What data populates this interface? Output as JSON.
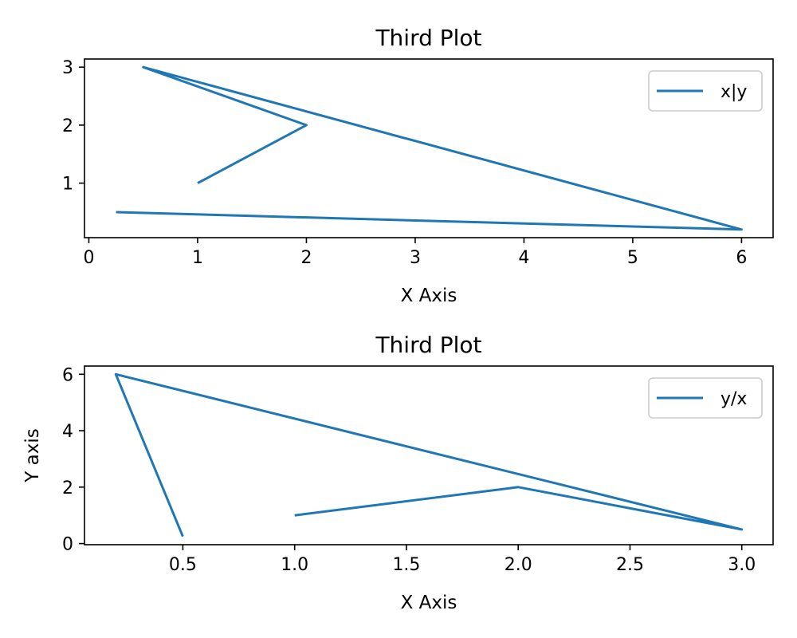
{
  "chart_data": [
    {
      "type": "line",
      "title": "Third Plot",
      "xlabel": "X Axis",
      "ylabel": "",
      "xlim": [
        -0.04,
        6.29
      ],
      "ylim": [
        0.06,
        3.14
      ],
      "xticks": [
        0,
        1,
        2,
        3,
        4,
        5,
        6
      ],
      "xtick_labels": [
        "0",
        "1",
        "2",
        "3",
        "4",
        "5",
        "6"
      ],
      "yticks": [
        1,
        2,
        3
      ],
      "ytick_labels": [
        "1",
        "2",
        "3"
      ],
      "grid": false,
      "legend": "top-right",
      "color": "#1f77b4",
      "series": [
        {
          "name": "x|y",
          "x": [
            1,
            2,
            0.5,
            6,
            0.25
          ],
          "y": [
            1,
            2,
            3,
            0.2,
            0.5
          ]
        }
      ]
    },
    {
      "type": "line",
      "title": "Third Plot",
      "xlabel": "X Axis",
      "ylabel": "Y axis",
      "xlim": [
        0.06,
        3.14
      ],
      "ylim": [
        -0.04,
        6.29
      ],
      "xticks": [
        0.5,
        1.0,
        1.5,
        2.0,
        2.5,
        3.0
      ],
      "xtick_labels": [
        "0.5",
        "1.0",
        "1.5",
        "2.0",
        "2.5",
        "3.0"
      ],
      "yticks": [
        0,
        2,
        4,
        6
      ],
      "ytick_labels": [
        "0",
        "2",
        "4",
        "6"
      ],
      "grid": false,
      "legend": "top-right",
      "color": "#1f77b4",
      "series": [
        {
          "name": "y/x",
          "x": [
            1,
            2,
            3,
            0.2,
            0.5
          ],
          "y": [
            1,
            2,
            0.5,
            6,
            0.25
          ]
        }
      ]
    }
  ]
}
